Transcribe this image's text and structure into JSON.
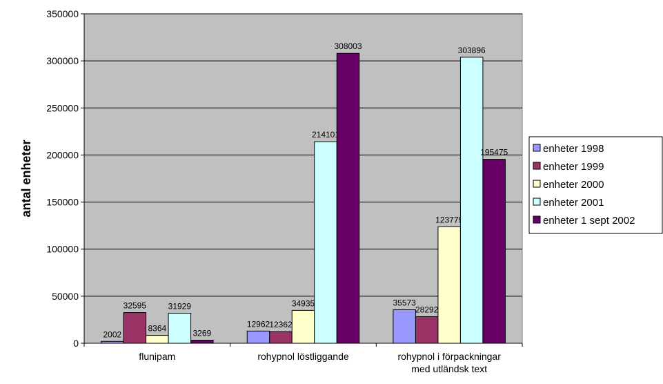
{
  "chart_data": {
    "type": "bar",
    "title": "",
    "xlabel": "",
    "ylabel": "antal enheter",
    "ylim": [
      0,
      350000
    ],
    "yticks": [
      0,
      50000,
      100000,
      150000,
      200000,
      250000,
      300000,
      350000
    ],
    "grid": true,
    "legend_position": "right",
    "categories": [
      [
        "flunipam"
      ],
      [
        "rohypnol löstliggande"
      ],
      [
        "rohypnol i förpackningar",
        "med utländsk text"
      ]
    ],
    "series": [
      {
        "name": "enheter 1998",
        "color": "#9999ff",
        "values": [
          2002,
          12962,
          35573
        ],
        "labels": [
          "2002",
          "12962",
          "35573"
        ]
      },
      {
        "name": "enheter 1999",
        "color": "#993366",
        "values": [
          32595,
          12362,
          28292
        ],
        "labels": [
          "32595",
          "12362",
          "28292"
        ]
      },
      {
        "name": "enheter 2000",
        "color": "#ffffcc",
        "values": [
          8364,
          34935,
          123779
        ],
        "labels": [
          "8364",
          "34935",
          "123779"
        ]
      },
      {
        "name": "enheter 2001",
        "color": "#ccffff",
        "values": [
          31929,
          214101,
          303896
        ],
        "labels": [
          "31929",
          "214101",
          "303896"
        ]
      },
      {
        "name": "enheter 1 sept 2002",
        "color": "#660066",
        "values": [
          3269,
          308003,
          195475
        ],
        "labels": [
          "3269",
          "308003",
          "195475"
        ]
      }
    ],
    "plot_background": "#c0c0c0"
  }
}
